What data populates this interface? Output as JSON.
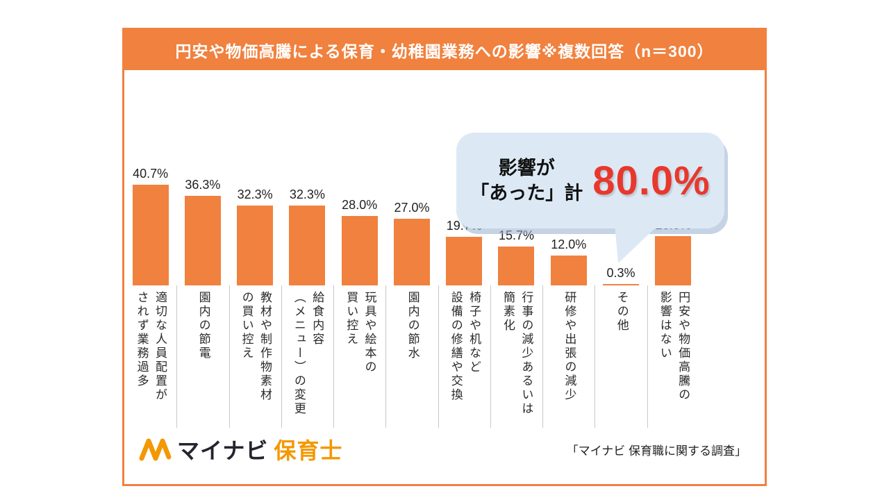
{
  "header": {
    "title": "円安や物価高騰による保育・幼稚園業務への影響※複数回答（n＝300）"
  },
  "callout": {
    "lines": "影響が\n「あった」計",
    "value": "80.0%"
  },
  "chart_data": {
    "type": "bar",
    "title": "円安や物価高騰による保育・幼稚園業務への影響※複数回答（n＝300）",
    "categories": [
      "適切な人員配置が\nされず業務過多",
      "園内の節電",
      "教材や制作物素材\nの買い控え",
      "給食内容\n（メニュー）の変更",
      "玩具や絵本の\n買い控え",
      "園内の節水",
      "椅子や机など\n設備の修繕や交換",
      "行事の減少あるいは\n簡素化",
      "研修や出張の減少",
      "その他",
      "円安や物価高騰の\n影響はない"
    ],
    "values": [
      40.7,
      36.3,
      32.3,
      32.3,
      28.0,
      27.0,
      19.7,
      15.7,
      12.0,
      0.3,
      20.0
    ],
    "value_labels": [
      "40.7%",
      "36.3%",
      "32.3%",
      "32.3%",
      "28.0%",
      "27.0%",
      "19.7%",
      "15.7%",
      "12.0%",
      "0.3%",
      "20.0%"
    ],
    "xlabel": "",
    "ylabel": "",
    "ylim": [
      0,
      45
    ],
    "grid": false,
    "legend": "none",
    "bar_color": "#F0813E",
    "annotation": "影響が「あった」計 80.0%"
  },
  "footer": {
    "logo_main": "マイナビ",
    "logo_sub": "保育士",
    "source": "「マイナビ 保育職に関する調査」"
  },
  "colors": {
    "accent_orange": "#F0813E",
    "logo_orange": "#F39800",
    "callout_bg": "#DCE9F5",
    "callout_value_red": "#E8382D",
    "divider_gray": "#c8c8c8"
  }
}
